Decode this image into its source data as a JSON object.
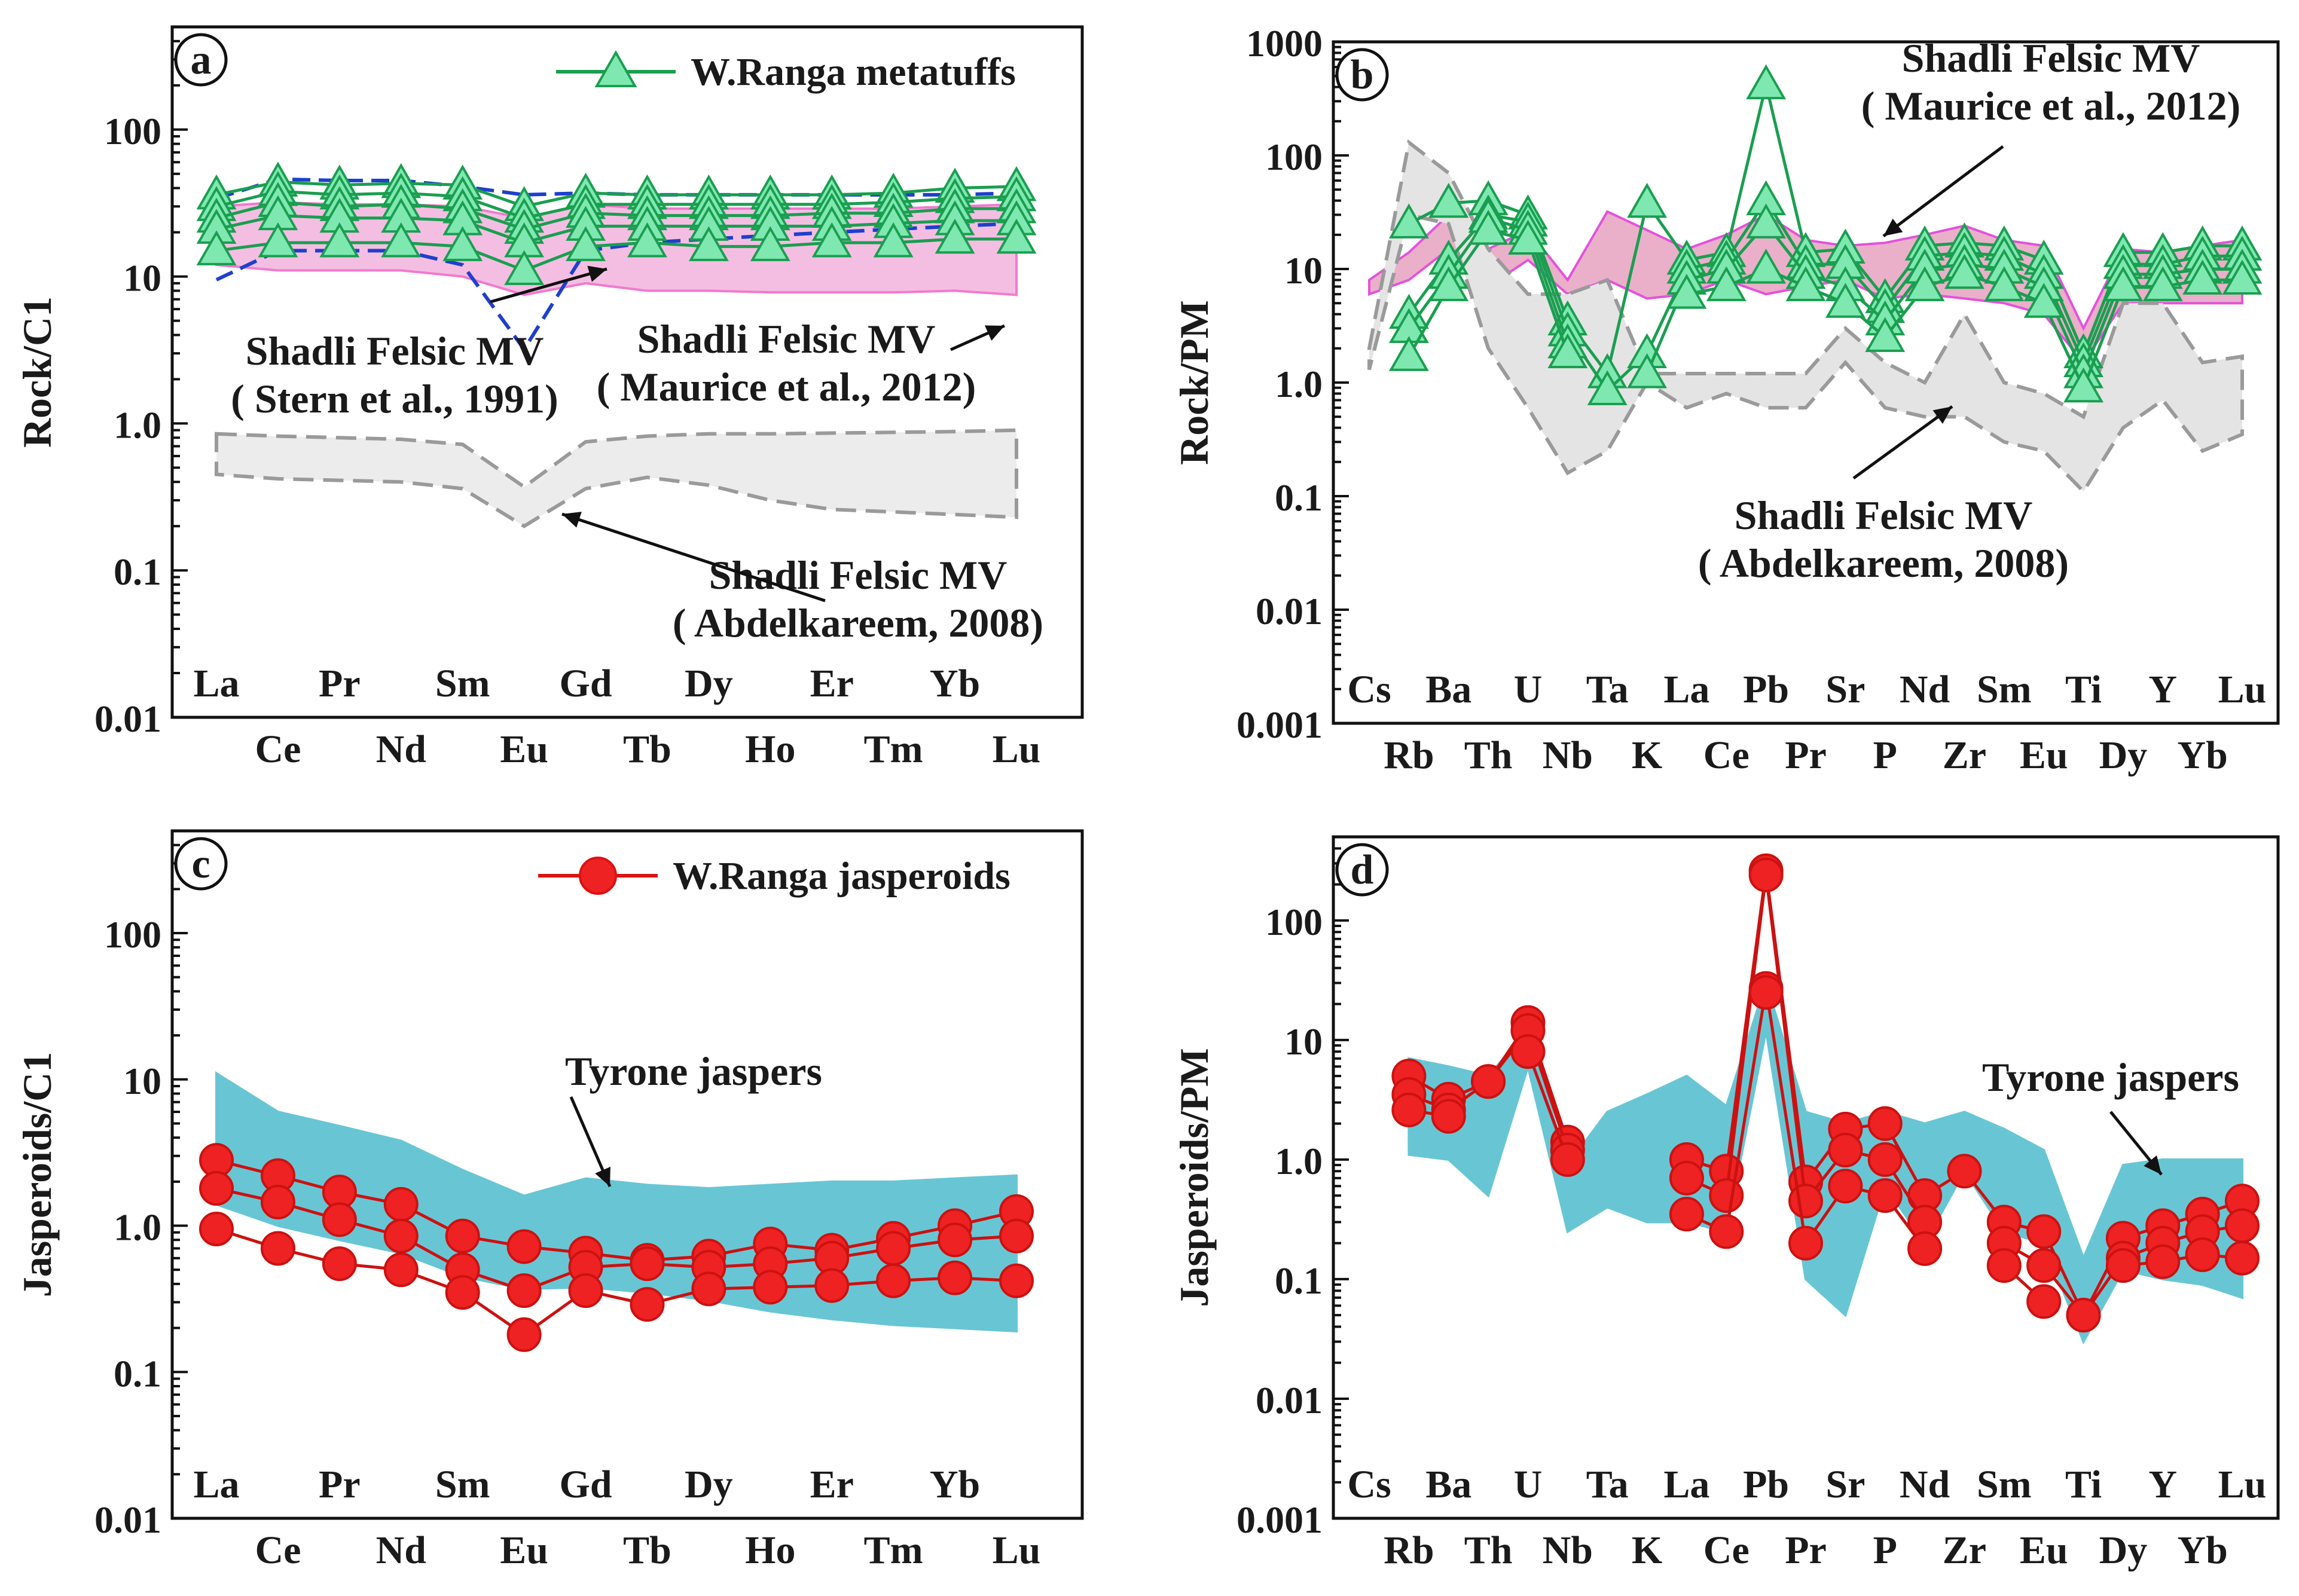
{
  "chart_data": [
    {
      "panel_letter": "a",
      "type": "line",
      "scale": "log",
      "ylabel": "Rock/C1",
      "ylim": [
        0.01,
        500
      ],
      "y_ticks": [
        0.01,
        0.1,
        1.0,
        10,
        100
      ],
      "y_tick_labels": [
        "0.01",
        "0.1",
        "1.0",
        "10",
        "100"
      ],
      "categories": [
        "La",
        "Ce",
        "Pr",
        "Nd",
        "Sm",
        "Eu",
        "Gd",
        "Tb",
        "Dy",
        "Ho",
        "Er",
        "Tm",
        "Yb",
        "Lu"
      ],
      "legend": {
        "label": "W.Ranga metatuffs",
        "position": "top-right",
        "color": "#1a9e50",
        "marker": "triangle",
        "fill": "#7fe8b0"
      },
      "marker_style": {
        "line": "#1a9e50",
        "fill": "#7fe8b0"
      },
      "series": [
        {
          "values": [
            36,
            44,
            42,
            43,
            42,
            30,
            37,
            36,
            36,
            36,
            36,
            37,
            40,
            41
          ]
        },
        {
          "values": [
            30,
            38,
            36,
            37,
            35,
            25,
            31,
            31,
            31,
            31,
            31,
            32,
            34,
            35
          ]
        },
        {
          "values": [
            25,
            32,
            30,
            31,
            29,
            21,
            27,
            26,
            26,
            26,
            27,
            27,
            29,
            29
          ]
        },
        {
          "values": [
            21,
            26,
            25,
            25,
            24,
            17,
            22,
            22,
            22,
            22,
            22,
            23,
            24,
            24
          ]
        },
        {
          "values": [
            15,
            17,
            17,
            17,
            16,
            11,
            16,
            17,
            16,
            16,
            17,
            17,
            18,
            18
          ]
        }
      ],
      "fields": [
        {
          "name": "Shadli Felsic MV (Maurice et al., 2012)",
          "style": "fill",
          "fill": "#f3b8e0",
          "stroke": "#f06cc8",
          "upper": [
            30,
            32,
            31,
            31,
            30,
            25,
            31,
            29,
            29,
            29,
            29,
            29,
            30,
            31
          ],
          "lower": [
            12,
            11,
            11,
            11,
            10,
            7.5,
            9,
            8,
            8,
            7.8,
            7.8,
            7.8,
            8,
            7.5
          ]
        },
        {
          "name": "Shadli Felsic MV (Stern et al., 1991)",
          "style": "dash-outline",
          "stroke": "#1f3fcc",
          "upper": [
            34,
            46,
            45,
            45,
            41,
            36,
            37,
            36,
            36,
            36,
            36,
            36,
            36,
            37
          ],
          "lower": [
            9.5,
            15,
            15,
            15,
            12,
            3.2,
            15,
            17,
            18,
            19,
            20,
            21,
            22,
            23
          ]
        },
        {
          "name": "Shadli Felsic MV (Abdelkareem, 2008)",
          "style": "dash-fill",
          "fill": "#ececec",
          "stroke": "#9a9a9a",
          "upper": [
            0.85,
            0.82,
            0.8,
            0.78,
            0.72,
            0.37,
            0.75,
            0.82,
            0.85,
            0.85,
            0.86,
            0.87,
            0.88,
            0.9
          ],
          "lower": [
            0.45,
            0.42,
            0.41,
            0.4,
            0.36,
            0.2,
            0.36,
            0.43,
            0.38,
            0.3,
            0.26,
            0.25,
            0.24,
            0.23
          ]
        }
      ],
      "annotations": [
        {
          "lines": [
            "Shadli Felsic MV",
            "( Stern et al., 1991)"
          ]
        },
        {
          "lines": [
            "Shadli Felsic MV",
            "( Maurice et al., 2012)"
          ]
        },
        {
          "lines": [
            "Shadli Felsic MV",
            "( Abdelkareem, 2008)"
          ]
        }
      ]
    },
    {
      "panel_letter": "b",
      "type": "line",
      "scale": "log",
      "ylabel": "Rock/PM",
      "ylim": [
        0.001,
        1000
      ],
      "y_ticks": [
        0.001,
        0.01,
        0.1,
        1.0,
        10,
        100,
        1000
      ],
      "y_tick_labels": [
        "0.001",
        "0.01",
        "0.1",
        "1.0",
        "10",
        "100",
        "1000"
      ],
      "categories": [
        "Cs",
        "Rb",
        "Ba",
        "Th",
        "U",
        "Nb",
        "Ta",
        "K",
        "La",
        "Ce",
        "Pb",
        "Pr",
        "Sr",
        "P",
        "Nd",
        "Zr",
        "Sm",
        "Eu",
        "Ti",
        "Dy",
        "Y",
        "Yb",
        "Lu"
      ],
      "marker_style": {
        "line": "#1a9e50",
        "fill": "#7fe8b0"
      },
      "series": [
        {
          "values": [
            null,
            25,
            38,
            40,
            30,
            3.5,
            1.2,
            38,
            12,
            14,
            420,
            14,
            15,
            5.5,
            16,
            17,
            16,
            12,
            1.8,
            14,
            14,
            16,
            16
          ]
        },
        {
          "values": [
            null,
            4,
            12,
            30,
            26,
            2.8,
            0.85,
            1.8,
            10,
            12,
            40,
            11,
            11,
            4.5,
            13,
            14,
            13,
            9,
            1.5,
            11,
            11,
            13,
            13
          ]
        },
        {
          "values": [
            null,
            3,
            9,
            28,
            22,
            2.2,
            null,
            1.2,
            8,
            10,
            25,
            9,
            7,
            3.5,
            10,
            11,
            10,
            7,
            1.2,
            9,
            9,
            10,
            10
          ]
        },
        {
          "values": [
            null,
            1.7,
            7,
            22,
            18,
            1.8,
            null,
            null,
            6,
            7,
            10,
            7,
            5,
            2.5,
            7,
            9,
            7,
            5,
            0.9,
            7,
            7,
            8,
            8
          ]
        }
      ],
      "fields": [
        {
          "name": "Shadli Felsic MV (Maurice et al., 2012)",
          "style": "fill",
          "fill": "#e8a8c4",
          "stroke": "#e040d8",
          "upper": [
            8,
            14,
            30,
            15,
            22,
            8,
            32,
            22,
            15,
            20,
            30,
            18,
            16,
            17,
            20,
            24,
            18,
            16,
            3,
            15,
            14,
            16,
            18
          ],
          "lower": [
            6,
            8,
            15,
            7,
            12,
            6,
            8,
            5.5,
            6,
            8,
            6,
            7,
            8,
            5.5,
            6,
            5.5,
            5,
            4,
            1.5,
            5,
            5,
            5,
            5
          ]
        },
        {
          "name": "Shadli Felsic MV (Abdelkareem, 2008)",
          "style": "dash-fill",
          "fill": "#e4e4e4",
          "stroke": "#9a9a9a",
          "upper": [
            2,
            130,
            70,
            15,
            6,
            6,
            8,
            1.2,
            1.2,
            1.2,
            1.2,
            1.2,
            3,
            1.5,
            1.0,
            4,
            1.0,
            0.8,
            0.5,
            5,
            5,
            1.5,
            1.7
          ],
          "lower": [
            1.3,
            30,
            25,
            2,
            0.6,
            0.16,
            0.25,
            1.0,
            0.6,
            0.8,
            0.6,
            0.6,
            1.5,
            0.6,
            0.5,
            0.5,
            0.3,
            0.25,
            0.11,
            0.4,
            0.7,
            0.25,
            0.35
          ]
        }
      ],
      "annotations": [
        {
          "lines": [
            "Shadli Felsic MV",
            "( Maurice et al., 2012)"
          ]
        },
        {
          "lines": [
            "Shadli Felsic MV",
            "( Abdelkareem, 2008)"
          ]
        }
      ]
    },
    {
      "panel_letter": "c",
      "type": "line",
      "scale": "log",
      "ylabel": "Jasperoids/C1",
      "ylim": [
        0.01,
        500
      ],
      "y_ticks": [
        0.01,
        0.1,
        1.0,
        10,
        100
      ],
      "y_tick_labels": [
        "0.01",
        "0.1",
        "1.0",
        "10",
        "100"
      ],
      "categories": [
        "La",
        "Ce",
        "Pr",
        "Nd",
        "Sm",
        "Eu",
        "Gd",
        "Tb",
        "Dy",
        "Ho",
        "Er",
        "Tm",
        "Yb",
        "Lu"
      ],
      "legend": {
        "label": "W.Ranga jasperoids",
        "position": "top-right",
        "color": "#dd1111",
        "marker": "circle",
        "fill": "#ee2222"
      },
      "marker_style": {
        "line": "#cc1111",
        "fill": "#ee2222"
      },
      "series": [
        {
          "values": [
            2.8,
            2.2,
            1.7,
            1.4,
            0.85,
            0.72,
            0.65,
            0.58,
            0.62,
            0.75,
            0.68,
            0.82,
            1.0,
            1.25
          ]
        },
        {
          "values": [
            1.8,
            1.45,
            1.1,
            0.85,
            0.5,
            0.36,
            0.52,
            0.55,
            0.52,
            0.55,
            0.6,
            0.7,
            0.8,
            0.85
          ]
        },
        {
          "values": [
            0.95,
            0.7,
            0.55,
            0.5,
            0.35,
            0.18,
            0.36,
            0.29,
            0.37,
            0.38,
            0.39,
            0.42,
            0.44,
            0.42
          ]
        }
      ],
      "fields": [
        {
          "name": "Tyrone jaspers",
          "style": "fill",
          "fill": "#58c0d0",
          "stroke": "#58c0d0",
          "upper": [
            11,
            6,
            4.8,
            3.8,
            2.4,
            1.6,
            2.1,
            1.9,
            1.8,
            1.9,
            2.0,
            2.0,
            2.1,
            2.2
          ],
          "lower": [
            1.4,
            1.0,
            0.8,
            0.65,
            0.45,
            0.37,
            0.38,
            0.35,
            0.31,
            0.26,
            0.23,
            0.21,
            0.2,
            0.19
          ]
        }
      ],
      "annotations": [
        {
          "lines": [
            "Tyrone jaspers"
          ]
        }
      ]
    },
    {
      "panel_letter": "d",
      "type": "line",
      "scale": "log",
      "ylabel": "Jasperoids/PM",
      "ylim": [
        0.001,
        500
      ],
      "y_ticks": [
        0.001,
        0.01,
        0.1,
        1.0,
        10,
        100
      ],
      "y_tick_labels": [
        "0.001",
        "0.01",
        "0.1",
        "1.0",
        "10",
        "100"
      ],
      "categories": [
        "Cs",
        "Rb",
        "Ba",
        "Th",
        "U",
        "Nb",
        "Ta",
        "K",
        "La",
        "Ce",
        "Pb",
        "Pr",
        "Sr",
        "P",
        "Nd",
        "Zr",
        "Sm",
        "Eu",
        "Ti",
        "Dy",
        "Y",
        "Yb",
        "Lu"
      ],
      "marker_style": {
        "line": "#cc1111",
        "fill": "#ee2222"
      },
      "series": [
        {
          "values": [
            null,
            5,
            3.2,
            4.5,
            14,
            1.4,
            null,
            null,
            1.0,
            0.8,
            260,
            0.65,
            1.8,
            2.0,
            0.5,
            0.8,
            0.3,
            0.25,
            0.05,
            0.22,
            0.28,
            0.35,
            0.45
          ]
        },
        {
          "values": [
            null,
            3.5,
            2.6,
            4.5,
            12,
            1.2,
            null,
            null,
            0.7,
            0.5,
            240,
            0.45,
            1.2,
            1.0,
            0.3,
            null,
            0.2,
            0.13,
            0.05,
            0.15,
            0.2,
            0.25,
            0.28
          ]
        },
        {
          "values": [
            null,
            2.6,
            2.3,
            null,
            8,
            1.0,
            null,
            null,
            0.35,
            0.25,
            27,
            0.2,
            0.6,
            0.5,
            0.18,
            null,
            0.13,
            0.065,
            null,
            0.13,
            0.14,
            0.16,
            0.15
          ]
        },
        {
          "values": [
            null,
            null,
            null,
            null,
            null,
            null,
            null,
            null,
            null,
            null,
            25,
            null,
            null,
            null,
            null,
            null,
            null,
            null,
            null,
            null,
            null,
            null,
            null
          ]
        }
      ],
      "fields": [
        {
          "name": "Tyrone jaspers",
          "style": "fill",
          "fill": "#58c0d0",
          "stroke": "#58c0d0",
          "upper": [
            null,
            7,
            6,
            5,
            12,
            0.9,
            2.5,
            3.5,
            5,
            2.8,
            30,
            2.5,
            2,
            2.5,
            2,
            2.5,
            1.8,
            1.2,
            0.15,
            0.9,
            1.0,
            1.0,
            1.0
          ],
          "lower": [
            null,
            1.1,
            1.0,
            0.5,
            6,
            0.25,
            0.4,
            0.3,
            0.3,
            0.25,
            12,
            0.1,
            0.05,
            0.6,
            0.2,
            0.8,
            0.25,
            0.2,
            0.03,
            0.12,
            0.1,
            0.09,
            0.07
          ]
        }
      ],
      "annotations": [
        {
          "lines": [
            "Tyrone jaspers"
          ]
        }
      ]
    }
  ]
}
